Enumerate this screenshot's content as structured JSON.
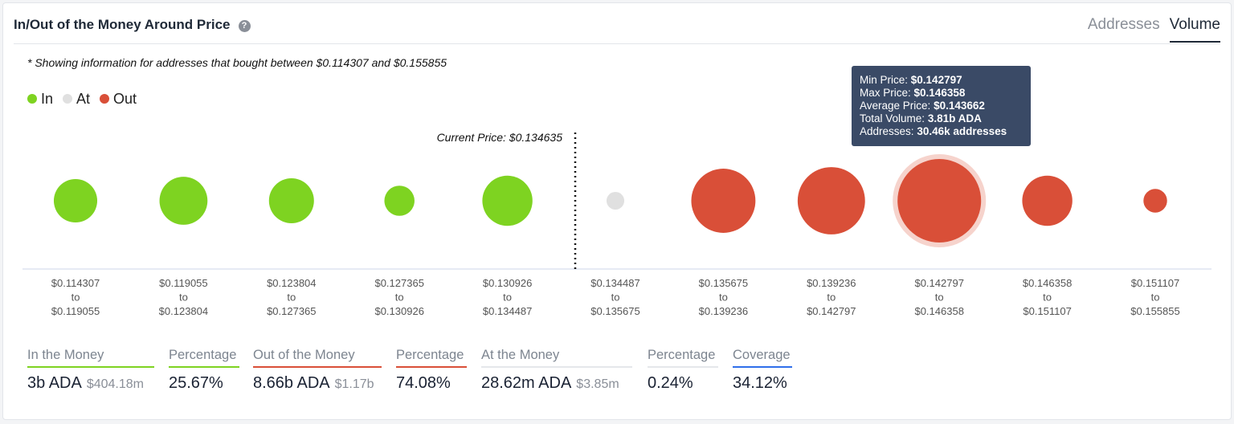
{
  "header": {
    "title": "In/Out of the Money Around Price",
    "help_icon": "question-circle-icon",
    "tabs": [
      {
        "label": "Addresses",
        "active": false
      },
      {
        "label": "Volume",
        "active": true
      }
    ]
  },
  "note": "* Showing information for addresses that bought between $0.114307 and $0.155855",
  "legend": [
    {
      "label": "In",
      "color": "#7ed321"
    },
    {
      "label": "At",
      "color": "#e0e0e0"
    },
    {
      "label": "Out",
      "color": "#d94f38"
    }
  ],
  "chart_data": {
    "type": "bubble",
    "current_price_label": "Current Price: $0.134635",
    "current_price": 0.134635,
    "categories": [
      {
        "from": "$0.114307",
        "to": "$0.119055",
        "status": "in",
        "relative_volume": 0.27
      },
      {
        "from": "$0.119055",
        "to": "$0.123804",
        "status": "in",
        "relative_volume": 0.33
      },
      {
        "from": "$0.123804",
        "to": "$0.127365",
        "status": "in",
        "relative_volume": 0.29
      },
      {
        "from": "$0.127365",
        "to": "$0.130926",
        "status": "in",
        "relative_volume": 0.13
      },
      {
        "from": "$0.130926",
        "to": "$0.134487",
        "status": "in",
        "relative_volume": 0.36
      },
      {
        "from": "$0.134487",
        "to": "$0.135675",
        "status": "at",
        "relative_volume": 0.045
      },
      {
        "from": "$0.135675",
        "to": "$0.139236",
        "status": "out",
        "relative_volume": 0.59
      },
      {
        "from": "$0.139236",
        "to": "$0.142797",
        "status": "out",
        "relative_volume": 0.65
      },
      {
        "from": "$0.142797",
        "to": "$0.146358",
        "status": "out",
        "relative_volume": 1.0,
        "highlighted": true
      },
      {
        "from": "$0.146358",
        "to": "$0.151107",
        "status": "out",
        "relative_volume": 0.36
      },
      {
        "from": "$0.151107",
        "to": "$0.155855",
        "status": "out",
        "relative_volume": 0.08
      }
    ],
    "to_word": "to",
    "colors": {
      "in": "#7ed321",
      "at": "#e0e0e0",
      "out": "#d94f38"
    }
  },
  "tooltip": {
    "min_label": "Min Price:",
    "min": "$0.142797",
    "max_label": "Max Price:",
    "max": "$0.146358",
    "avg_label": "Average Price:",
    "avg": "$0.143662",
    "vol_label": "Total Volume:",
    "vol": "3.81b ADA",
    "addr_label": "Addresses:",
    "addr": "30.46k addresses"
  },
  "stats": [
    {
      "label": "In the Money",
      "value": "3b ADA",
      "sub": "$404.18m",
      "color": "#7ed321"
    },
    {
      "label": "Percentage",
      "value": "25.67%",
      "sub": "",
      "color": "#7ed321"
    },
    {
      "label": "Out of the Money",
      "value": "8.66b ADA",
      "sub": "$1.17b",
      "color": "#d94f38"
    },
    {
      "label": "Percentage",
      "value": "74.08%",
      "sub": "",
      "color": "#d94f38"
    },
    {
      "label": "At the Money",
      "value": "28.62m ADA",
      "sub": "$3.85m",
      "color": "#e5e7eb"
    },
    {
      "label": "Percentage",
      "value": "0.24%",
      "sub": "",
      "color": "#e5e7eb"
    },
    {
      "label": "Coverage",
      "value": "34.12%",
      "sub": "",
      "color": "#2f6fea"
    }
  ]
}
